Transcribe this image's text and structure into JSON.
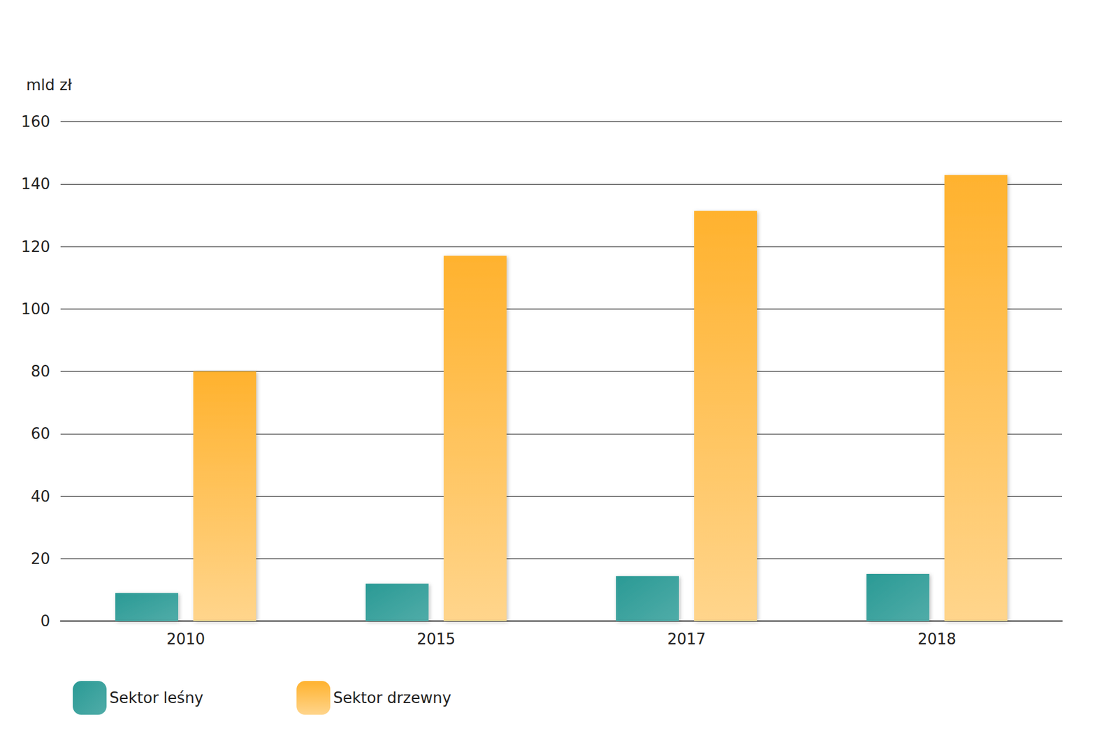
{
  "chart_data": {
    "type": "bar",
    "y_label": "mld zł",
    "categories": [
      "2010",
      "2015",
      "2017",
      "2018"
    ],
    "series": [
      {
        "name": "Sektor leśny",
        "color": "#2a9a95",
        "values": [
          9,
          12,
          14.4,
          15.1
        ]
      },
      {
        "name": "Sektor drzewny",
        "color": "#ffb22e",
        "values": [
          80,
          117,
          131.4,
          142.9
        ]
      }
    ],
    "ylim": [
      0,
      160
    ],
    "yticks": [
      0,
      20,
      40,
      60,
      80,
      100,
      120,
      140,
      160
    ],
    "grid": true,
    "legend": "bottom-left"
  }
}
